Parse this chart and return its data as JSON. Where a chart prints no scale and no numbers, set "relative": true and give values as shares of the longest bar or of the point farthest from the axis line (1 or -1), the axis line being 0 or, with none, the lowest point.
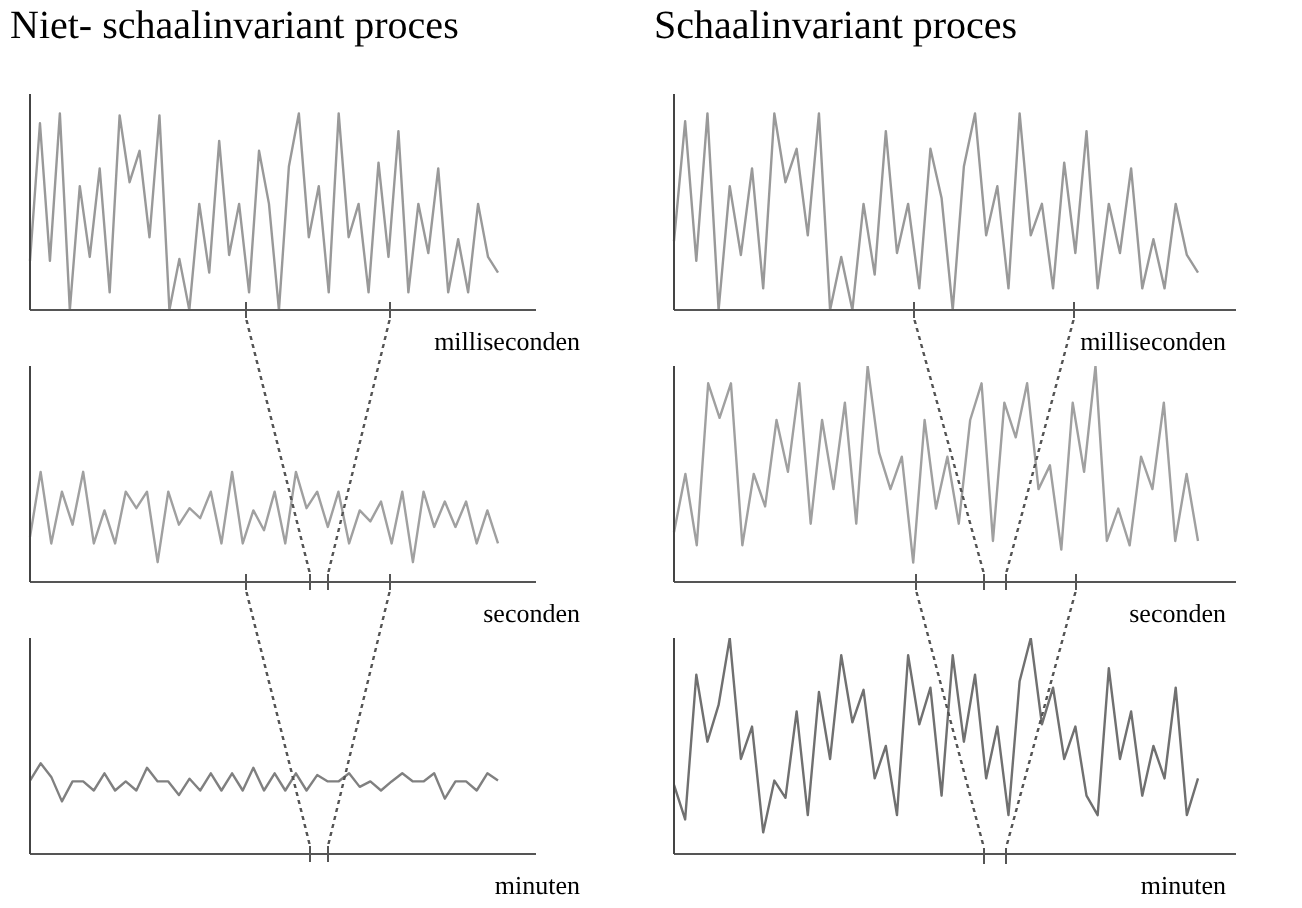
{
  "chart_data": [
    {
      "type": "line",
      "title": "Niet- schaalinvariant proces",
      "xlabel": "milliseconden",
      "relative": true,
      "color": "#999999",
      "categories": [
        null,
        null,
        null,
        null,
        null,
        null,
        null,
        null,
        null,
        null,
        null,
        null,
        null,
        null,
        null,
        null,
        null,
        null,
        null,
        null,
        null,
        null,
        null,
        null,
        null,
        null,
        null,
        null,
        null,
        null,
        null,
        null,
        null,
        null,
        null,
        null,
        null,
        null,
        null,
        null,
        null,
        null,
        null,
        null,
        null,
        null,
        null,
        null
      ],
      "values": [
        0.25,
        0.95,
        0.25,
        1,
        0,
        0.63,
        0.27,
        0.72,
        0.09,
        0.99,
        0.65,
        0.81,
        0.37,
        0.99,
        0,
        0.26,
        0,
        0.54,
        0.19,
        0.86,
        0.28,
        0.54,
        0.09,
        0.81,
        0.54,
        0,
        0.73,
        1,
        0.37,
        0.63,
        0.09,
        1,
        0.37,
        0.54,
        0.09,
        0.75,
        0.27,
        0.91,
        0.09,
        0.54,
        0.29,
        0.72,
        0.09,
        0.36,
        0.09,
        0.54,
        0.27,
        0.19
      ]
    },
    {
      "type": "line",
      "title": "Schaalinvariant proces",
      "xlabel": "milliseconden",
      "relative": true,
      "color": "#999999",
      "categories": [
        null,
        null,
        null,
        null,
        null,
        null,
        null,
        null,
        null,
        null,
        null,
        null,
        null,
        null,
        null,
        null,
        null,
        null,
        null,
        null,
        null,
        null,
        null,
        null,
        null,
        null,
        null,
        null,
        null,
        null,
        null,
        null,
        null,
        null,
        null,
        null,
        null,
        null,
        null,
        null,
        null,
        null,
        null,
        null,
        null,
        null,
        null,
        null
      ],
      "values": [
        0.35,
        0.96,
        0.25,
        1,
        0,
        0.63,
        0.28,
        0.72,
        0.11,
        1,
        0.65,
        0.82,
        0.38,
        1,
        0,
        0.27,
        0,
        0.54,
        0.18,
        0.91,
        0.29,
        0.54,
        0.11,
        0.82,
        0.57,
        0,
        0.73,
        1,
        0.38,
        0.63,
        0.11,
        1,
        0.38,
        0.54,
        0.11,
        0.75,
        0.29,
        0.91,
        0.11,
        0.54,
        0.29,
        0.72,
        0.11,
        0.36,
        0.11,
        0.54,
        0.28,
        0.19
      ]
    },
    {
      "type": "line",
      "xlabel": "seconden",
      "relative": true,
      "color": "#a0a0a0",
      "categories": [
        null,
        null,
        null,
        null,
        null,
        null,
        null,
        null,
        null,
        null,
        null,
        null,
        null,
        null,
        null,
        null,
        null,
        null,
        null,
        null,
        null,
        null,
        null,
        null,
        null,
        null,
        null,
        null,
        null,
        null,
        null,
        null,
        null,
        null,
        null,
        null,
        null,
        null,
        null,
        null,
        null,
        null,
        null,
        null,
        null
      ],
      "values": [
        0.41,
        1,
        0.35,
        0.82,
        0.52,
        1,
        0.35,
        0.65,
        0.35,
        0.82,
        0.67,
        0.82,
        0.18,
        0.82,
        0.52,
        0.67,
        0.58,
        0.82,
        0.35,
        1,
        0.35,
        0.65,
        0.47,
        0.82,
        0.35,
        1,
        0.67,
        0.82,
        0.5,
        0.82,
        0.35,
        0.65,
        0.55,
        0.73,
        0.35,
        0.82,
        0.18,
        0.82,
        0.5,
        0.73,
        0.5,
        0.73,
        0.35,
        0.65,
        0.35
      ]
    },
    {
      "type": "line",
      "xlabel": "seconden",
      "relative": true,
      "color": "#a0a0a0",
      "categories": [
        null,
        null,
        null,
        null,
        null,
        null,
        null,
        null,
        null,
        null,
        null,
        null,
        null,
        null,
        null,
        null,
        null,
        null,
        null,
        null,
        null,
        null,
        null,
        null,
        null,
        null,
        null,
        null,
        null,
        null,
        null,
        null,
        null,
        null,
        null,
        null,
        null,
        null,
        null,
        null,
        null,
        null,
        null,
        null,
        null,
        null,
        null
      ],
      "values": [
        0.23,
        0.5,
        0.17,
        0.92,
        0.76,
        0.92,
        0.17,
        0.5,
        0.35,
        0.75,
        0.51,
        0.92,
        0.27,
        0.75,
        0.43,
        0.83,
        0.27,
        1,
        0.6,
        0.43,
        0.58,
        0.09,
        0.75,
        0.34,
        0.58,
        0.27,
        0.75,
        0.92,
        0.19,
        0.83,
        0.67,
        0.92,
        0.43,
        0.54,
        0.15,
        0.83,
        0.51,
        1,
        0.19,
        0.34,
        0.17,
        0.58,
        0.43,
        0.83,
        0.19,
        0.5,
        0.19
      ]
    },
    {
      "type": "line",
      "xlabel": "minuten",
      "relative": true,
      "color": "#808080",
      "categories": [
        null,
        null,
        null,
        null,
        null,
        null,
        null,
        null,
        null,
        null,
        null,
        null,
        null,
        null,
        null,
        null,
        null,
        null,
        null,
        null,
        null,
        null,
        null,
        null,
        null,
        null,
        null,
        null,
        null,
        null,
        null,
        null,
        null,
        null,
        null,
        null,
        null,
        null,
        null,
        null,
        null,
        null,
        null,
        null,
        null
      ],
      "values": [
        0.81,
        1,
        0.85,
        0.58,
        0.8,
        0.8,
        0.7,
        0.89,
        0.7,
        0.8,
        0.7,
        0.95,
        0.8,
        0.8,
        0.65,
        0.83,
        0.7,
        0.89,
        0.7,
        0.89,
        0.7,
        0.95,
        0.7,
        0.89,
        0.7,
        0.89,
        0.7,
        0.87,
        0.8,
        0.8,
        0.89,
        0.74,
        0.8,
        0.7,
        0.8,
        0.89,
        0.8,
        0.8,
        0.89,
        0.61,
        0.8,
        0.8,
        0.7,
        0.89,
        0.81
      ]
    },
    {
      "type": "line",
      "xlabel": "minuten",
      "relative": true,
      "color": "#707070",
      "categories": [
        null,
        null,
        null,
        null,
        null,
        null,
        null,
        null,
        null,
        null,
        null,
        null,
        null,
        null,
        null,
        null,
        null,
        null,
        null,
        null,
        null,
        null,
        null,
        null,
        null,
        null,
        null,
        null,
        null,
        null,
        null,
        null,
        null,
        null,
        null,
        null,
        null,
        null,
        null,
        null,
        null,
        null,
        null,
        null,
        null,
        null,
        null,
        null
      ],
      "values": [
        0.32,
        0.16,
        0.83,
        0.52,
        0.69,
        1,
        0.44,
        0.59,
        0.1,
        0.34,
        0.26,
        0.66,
        0.18,
        0.75,
        0.44,
        0.92,
        0.61,
        0.76,
        0.35,
        0.5,
        0.18,
        0.92,
        0.6,
        0.77,
        0.27,
        0.92,
        0.52,
        0.83,
        0.35,
        0.59,
        0.18,
        0.8,
        1,
        0.6,
        0.77,
        0.44,
        0.59,
        0.27,
        0.18,
        0.86,
        0.44,
        0.66,
        0.27,
        0.5,
        0.35,
        0.77,
        0.18,
        0.35
      ]
    }
  ]
}
